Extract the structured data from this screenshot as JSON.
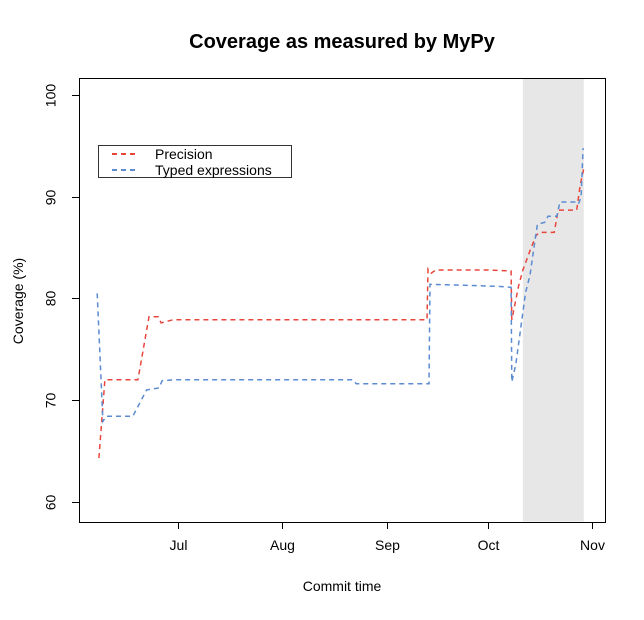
{
  "figure": {
    "background": "#ffffff",
    "border_color": "#000000",
    "shaded_band_color": "#e7e7e7"
  },
  "chart_data": {
    "type": "line",
    "title": "Coverage as measured by MyPy",
    "xlabel": "Commit time",
    "ylabel": "Coverage (%)",
    "x_unit": "days relative to Jul 1",
    "xlim": [
      -29.4,
      126.9
    ],
    "ylim": [
      58.0,
      101.7
    ],
    "grid": false,
    "x_ticks": [
      {
        "t": 0,
        "label": "Jul"
      },
      {
        "t": 31,
        "label": "Aug"
      },
      {
        "t": 62,
        "label": "Sep"
      },
      {
        "t": 92,
        "label": "Oct"
      },
      {
        "t": 123,
        "label": "Nov"
      }
    ],
    "y_ticks": [
      {
        "v": 60,
        "label": "60"
      },
      {
        "v": 70,
        "label": "70"
      },
      {
        "v": 80,
        "label": "80"
      },
      {
        "v": 90,
        "label": "90"
      },
      {
        "v": 100,
        "label": "100"
      }
    ],
    "shaded_band": {
      "from_t": 102.5,
      "to_t": 120.6,
      "color": "#e7e7e7"
    },
    "legend": {
      "position": "top-left-inside",
      "border": true
    },
    "line_style": {
      "dash": [
        5,
        4
      ],
      "width": 1.5
    },
    "series": [
      {
        "name": "Precision",
        "color": "#e8463c",
        "points": [
          [
            -23.5,
            64.3
          ],
          [
            -21.7,
            72.0
          ],
          [
            -11.9,
            72.0
          ],
          [
            -8.6,
            78.2
          ],
          [
            -5.9,
            78.2
          ],
          [
            -5.0,
            77.6
          ],
          [
            -1.5,
            77.9
          ],
          [
            74.0,
            77.9
          ],
          [
            74.3,
            82.9
          ],
          [
            75.3,
            82.5
          ],
          [
            76.6,
            82.8
          ],
          [
            92.0,
            82.8
          ],
          [
            99.0,
            82.7
          ],
          [
            99.2,
            77.9
          ],
          [
            100.3,
            79.7
          ],
          [
            101.2,
            81.2
          ],
          [
            102.5,
            82.8
          ],
          [
            104.6,
            84.7
          ],
          [
            106.4,
            86.2
          ],
          [
            107.5,
            86.5
          ],
          [
            111.8,
            86.5
          ],
          [
            113.0,
            88.7
          ],
          [
            118.5,
            88.7
          ],
          [
            119.4,
            90.9
          ],
          [
            120.0,
            91.9
          ],
          [
            120.6,
            92.8
          ]
        ]
      },
      {
        "name": "Typed expressions",
        "color": "#5b8bd0",
        "points": [
          [
            -24.0,
            80.5
          ],
          [
            -22.3,
            67.9
          ],
          [
            -21.3,
            68.4
          ],
          [
            -13.4,
            68.4
          ],
          [
            -9.3,
            71.0
          ],
          [
            -5.6,
            71.2
          ],
          [
            -4.7,
            71.9
          ],
          [
            -1.5,
            72.0
          ],
          [
            52.0,
            72.0
          ],
          [
            53.0,
            71.6
          ],
          [
            74.6,
            71.6
          ],
          [
            74.9,
            81.4
          ],
          [
            95.0,
            81.2
          ],
          [
            99.0,
            81.1
          ],
          [
            99.2,
            71.8
          ],
          [
            100.4,
            73.5
          ],
          [
            101.9,
            77.2
          ],
          [
            103.3,
            80.6
          ],
          [
            104.6,
            82.3
          ],
          [
            106.0,
            85.5
          ],
          [
            106.8,
            87.3
          ],
          [
            109.0,
            87.5
          ],
          [
            110.0,
            88.1
          ],
          [
            112.6,
            88.1
          ],
          [
            113.5,
            89.5
          ],
          [
            118.2,
            89.5
          ],
          [
            119.0,
            89.3
          ],
          [
            119.8,
            90.0
          ],
          [
            120.4,
            94.8
          ]
        ]
      }
    ]
  }
}
